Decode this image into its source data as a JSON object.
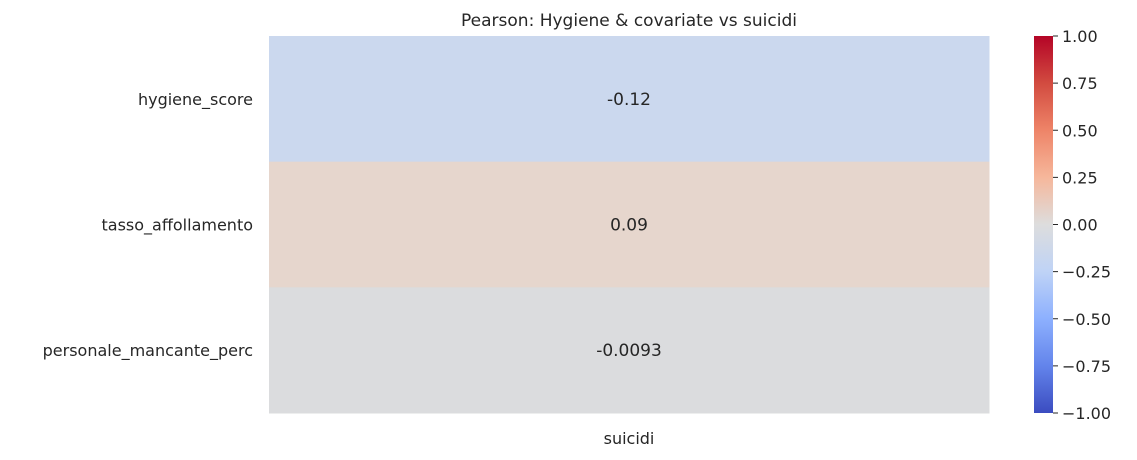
{
  "chart_data": {
    "type": "heatmap",
    "title": "Pearson: Hygiene & covariate vs suicidi",
    "columns": [
      "suicidi"
    ],
    "rows": [
      "hygiene_score",
      "tasso_affollamento",
      "personale_mancante_perc"
    ],
    "values": [
      [
        -0.12
      ],
      [
        0.09
      ],
      [
        -0.0093
      ]
    ],
    "annotations": [
      [
        "-0.12"
      ],
      [
        "0.09"
      ],
      [
        "-0.0093"
      ]
    ],
    "colormap": "coolwarm",
    "colorbar": {
      "range": [
        -1.0,
        1.0
      ],
      "ticks": [
        1.0,
        0.75,
        0.5,
        0.25,
        0.0,
        -0.25,
        -0.5,
        -0.75,
        -1.0
      ],
      "tick_labels": [
        "1.00",
        "0.75",
        "0.50",
        "0.25",
        "0.00",
        "−0.25",
        "−0.50",
        "−0.75",
        "−1.00"
      ]
    },
    "cell_colors": [
      "#cbd8ee",
      "#e6d6cd",
      "#dbdcde"
    ],
    "colorbar_stops": [
      "#b40426",
      "#d24b40",
      "#ee8468",
      "#f6b79b",
      "#dddddd",
      "#bfd3f6",
      "#8db0fe",
      "#6384eb",
      "#3b4cc0"
    ]
  }
}
